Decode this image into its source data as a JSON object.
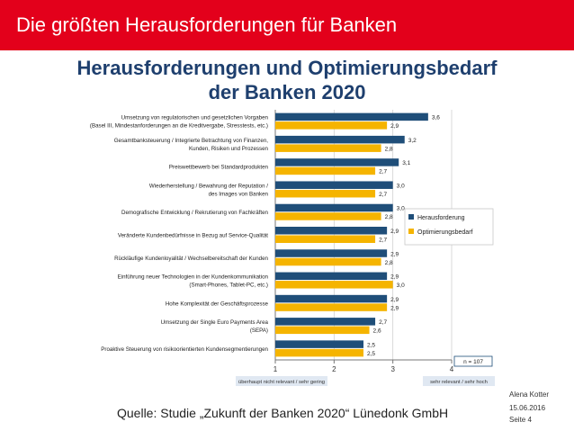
{
  "header": {
    "title": "Die größten Herausforderungen für Banken"
  },
  "chart_data": {
    "type": "bar",
    "orientation": "horizontal",
    "title_lines": [
      "Herausforderungen und Optimierungsbedarf",
      "der Banken 2020"
    ],
    "categories": [
      [
        "Umsetzung von regulatorischen und gesetzlichen Vorgaben",
        "(Basel III, Mindestanforderungen an die Kreditvergabe, Stresstests, etc.)"
      ],
      [
        "Gesamtbanksteuerung / Integrierte Betrachtung von Finanzen,",
        "Kunden, Risiken und Prozessen"
      ],
      [
        "Preiswettbewerb bei Standardprodukten"
      ],
      [
        "Wiederherstellung / Bewahrung der Reputation /",
        "des Images von Banken"
      ],
      [
        "Demografische Entwicklung / Rekrutierung von Fachkräften"
      ],
      [
        "Veränderte Kundenbedürfnisse in Bezug auf Service-Qualität"
      ],
      [
        "Rückläufige Kundenloyalität / Wechselbereitschaft der Kunden"
      ],
      [
        "Einführung neuer Technologien in der Kundenkommunikation",
        "(Smart-Phones, Tablet-PC, etc.)"
      ],
      [
        "Hohe Komplexität der Geschäftsprozesse"
      ],
      [
        "Umsetzung der Single Euro Payments Area",
        "(SEPA)"
      ],
      [
        "Proaktive Steuerung von risikoorientierten Kundensegmentierungen"
      ]
    ],
    "series": [
      {
        "name": "Herausforderung",
        "color": "#1f4e79",
        "values": [
          3.6,
          3.2,
          3.1,
          3.0,
          3.0,
          2.9,
          2.9,
          2.9,
          2.9,
          2.7,
          2.5
        ]
      },
      {
        "name": "Optimierungsbedarf",
        "color": "#f5b400",
        "values": [
          2.9,
          2.8,
          2.7,
          2.7,
          2.8,
          2.7,
          2.8,
          3.0,
          2.9,
          2.6,
          2.5
        ]
      }
    ],
    "value_labels": [
      [
        "3,6",
        "3,2",
        "3,1",
        "3,0",
        "3,0",
        "2,9",
        "2,9",
        "2,9",
        "2,9",
        "2,7",
        "2,5"
      ],
      [
        "2,9",
        "2,8",
        "2,7",
        "2,7",
        "2,8",
        "2,7",
        "2,8",
        "3,0",
        "2,9",
        "2,6",
        "2,5"
      ]
    ],
    "xlim": [
      1,
      4
    ],
    "xticks": [
      "1",
      "2",
      "3",
      "4"
    ],
    "scale_left_label": "überhaupt nicht relevant / sehr gering",
    "scale_right_label": "sehr relevant / sehr hoch",
    "n_label": "n = 107",
    "legend_position": "right"
  },
  "source": "Quelle: Studie „Zukunft der Banken 2020“ Lünedonk GmbH",
  "footer": {
    "author": "Alena Kotter",
    "date": "15.06.2016",
    "page": "Seite 4"
  }
}
